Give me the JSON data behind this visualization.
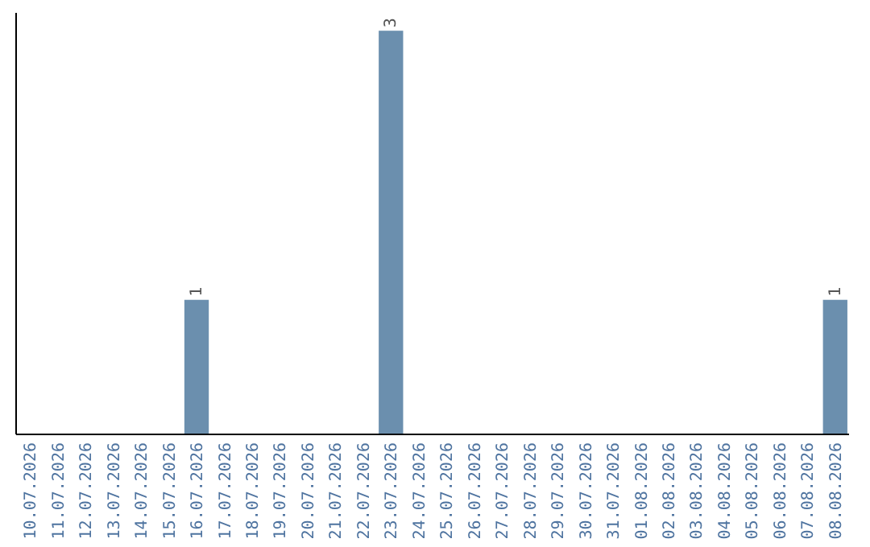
{
  "chart_data": {
    "type": "bar",
    "categories": [
      "10.07.2026",
      "11.07.2026",
      "12.07.2026",
      "13.07.2026",
      "14.07.2026",
      "15.07.2026",
      "16.07.2026",
      "17.07.2026",
      "18.07.2026",
      "19.07.2026",
      "20.07.2026",
      "21.07.2026",
      "22.07.2026",
      "23.07.2026",
      "24.07.2026",
      "25.07.2026",
      "26.07.2026",
      "27.07.2026",
      "28.07.2026",
      "29.07.2026",
      "30.07.2026",
      "31.07.2026",
      "01.08.2026",
      "02.08.2026",
      "03.08.2026",
      "04.08.2026",
      "05.08.2026",
      "06.08.2026",
      "07.08.2026",
      "08.08.2026"
    ],
    "values": [
      0,
      0,
      0,
      0,
      0,
      0,
      1,
      0,
      0,
      0,
      0,
      0,
      0,
      3,
      0,
      0,
      0,
      0,
      0,
      0,
      0,
      0,
      0,
      0,
      0,
      0,
      0,
      0,
      0,
      1
    ],
    "value_labels": [
      null,
      null,
      null,
      null,
      null,
      null,
      "1",
      null,
      null,
      null,
      null,
      null,
      null,
      "3",
      null,
      null,
      null,
      null,
      null,
      null,
      null,
      null,
      null,
      null,
      null,
      null,
      null,
      null,
      null,
      "1"
    ],
    "color": "#6b8fae"
  }
}
